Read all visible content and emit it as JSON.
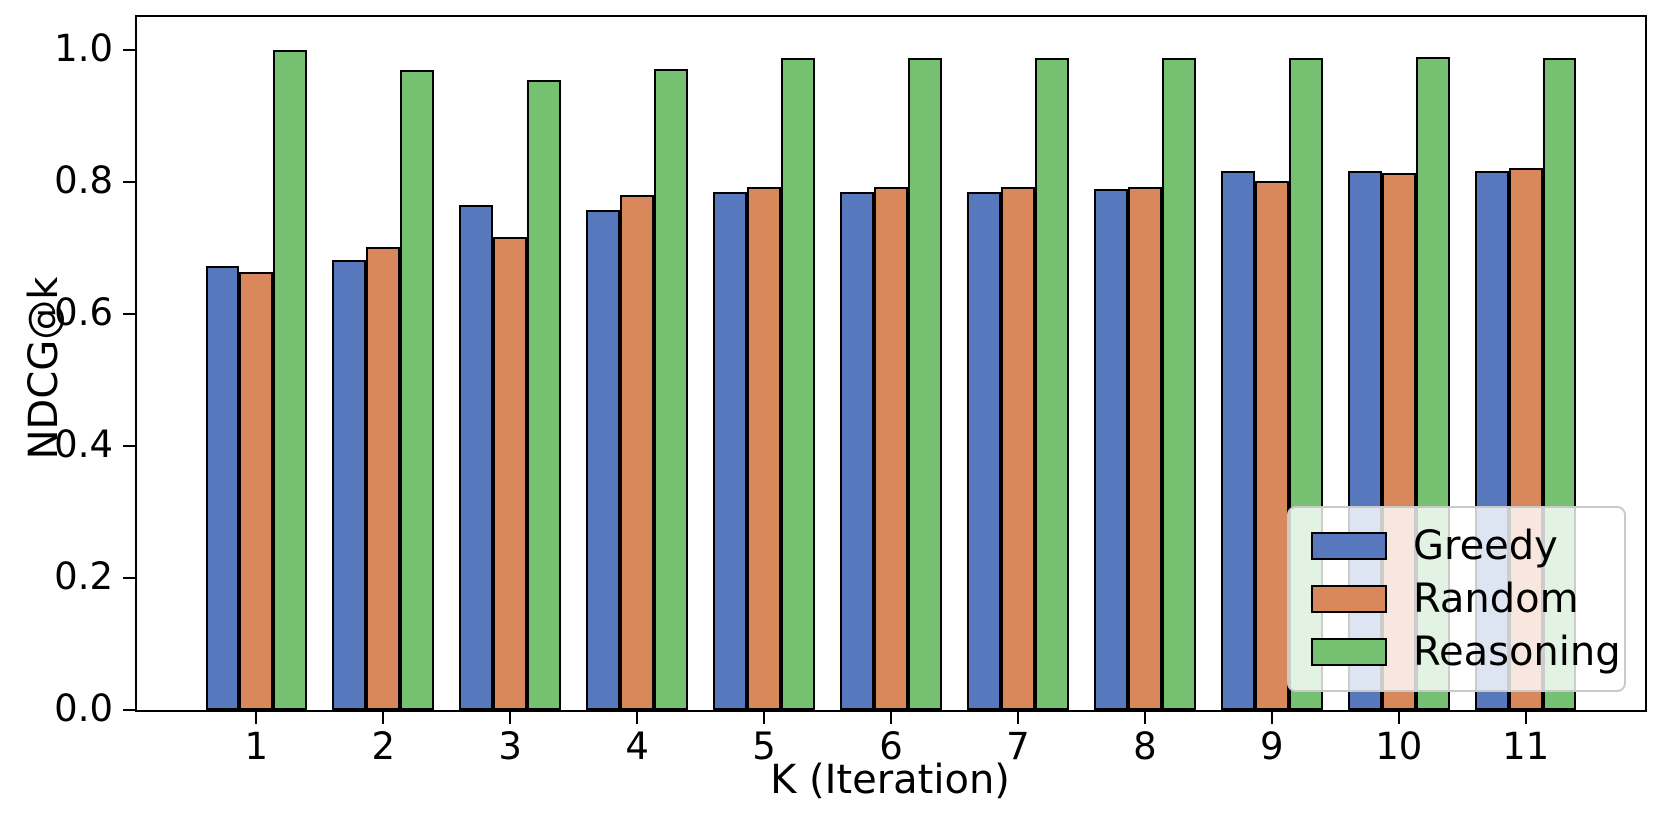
{
  "chart_data": {
    "type": "bar",
    "title": "",
    "xlabel": "K (Iteration)",
    "ylabel": "NDCG@k",
    "categories": [
      1,
      2,
      3,
      4,
      5,
      6,
      7,
      8,
      9,
      10,
      11
    ],
    "series": [
      {
        "name": "Greedy",
        "color": "#5878BE",
        "values": [
          0.672,
          0.682,
          0.765,
          0.758,
          0.785,
          0.785,
          0.785,
          0.79,
          0.816,
          0.817,
          0.817
        ]
      },
      {
        "name": "Random",
        "color": "#D9885C",
        "values": [
          0.664,
          0.701,
          0.717,
          0.78,
          0.792,
          0.792,
          0.792,
          0.793,
          0.802,
          0.813,
          0.821
        ]
      },
      {
        "name": "Reasoning",
        "color": "#76C072",
        "values": [
          1.0,
          0.969,
          0.954,
          0.971,
          0.988,
          0.988,
          0.988,
          0.988,
          0.988,
          0.989,
          0.988
        ]
      }
    ],
    "yticks": [
      0.0,
      0.2,
      0.4,
      0.6,
      0.8,
      1.0
    ],
    "ylim": [
      0,
      1.05
    ],
    "xlim": [
      0.06,
      11.94
    ],
    "bar_group_width": 0.8,
    "edge_color": "#000000",
    "grid": false,
    "legend_position": "lower right"
  }
}
